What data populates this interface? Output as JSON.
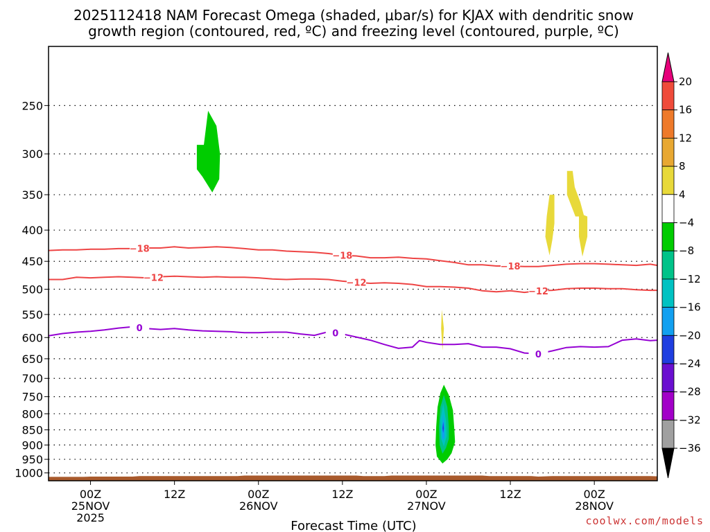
{
  "chart_data": {
    "type": "time-height contour",
    "title_line1": "2025112418 NAM Forecast Omega (shaded, μbar/s) for KJAX with dendritic snow",
    "title_line2": "growth region (contoured, red, ºC) and freezing level (contoured, purple, ºC)",
    "xlabel": "Forecast Time (UTC)",
    "credit": "coolwx.com/models",
    "x_range_hours": [
      -6,
      81
    ],
    "y_range_mb": [
      1030,
      200
    ],
    "y_ticks": [
      250,
      300,
      350,
      400,
      450,
      500,
      550,
      600,
      650,
      700,
      750,
      800,
      850,
      900,
      950,
      1000
    ],
    "x_ticks": [
      {
        "hour": 0,
        "lines": [
          "00Z",
          "25NOV",
          "2025"
        ]
      },
      {
        "hour": 12,
        "lines": [
          "12Z"
        ]
      },
      {
        "hour": 24,
        "lines": [
          "00Z",
          "26NOV"
        ]
      },
      {
        "hour": 36,
        "lines": [
          "12Z"
        ]
      },
      {
        "hour": 48,
        "lines": [
          "00Z",
          "27NOV"
        ]
      },
      {
        "hour": 60,
        "lines": [
          "12Z"
        ]
      },
      {
        "hour": 72,
        "lines": [
          "00Z",
          "28NOV"
        ]
      }
    ],
    "colorbar": {
      "levels": [
        "20",
        "16",
        "12",
        "8",
        "4",
        "−4",
        "−8",
        "−12",
        "−16",
        "−20",
        "−24",
        "−28",
        "−32",
        "−36"
      ],
      "colors": [
        "#e8397a",
        "#ef4b3a",
        "#ee7a2a",
        "#e8a832",
        "#e8d93a",
        "#ffffff",
        "#00cc00",
        "#00c389",
        "#00c2c2",
        "#12a0f0",
        "#1f3ee0",
        "#6a0fd0",
        "#a200c8",
        "#a0a0a0",
        "#000000"
      ],
      "top_arrow_color": "#e6007a",
      "bottom_arrow_color": "#000000"
    },
    "contours": [
      {
        "name": "dgz -18C",
        "color": "#ee4444",
        "label": "−18",
        "points": [
          [
            -6,
            432
          ],
          [
            -4,
            431
          ],
          [
            -2,
            431
          ],
          [
            0,
            430
          ],
          [
            2,
            430
          ],
          [
            4,
            429
          ],
          [
            6,
            429
          ],
          [
            8,
            428
          ],
          [
            10,
            428
          ],
          [
            12,
            426
          ],
          [
            14,
            428
          ],
          [
            16,
            427
          ],
          [
            18,
            426
          ],
          [
            20,
            427
          ],
          [
            22,
            429
          ],
          [
            24,
            431
          ],
          [
            26,
            431
          ],
          [
            28,
            433
          ],
          [
            30,
            434
          ],
          [
            32,
            435
          ],
          [
            34,
            437
          ],
          [
            36,
            440
          ],
          [
            38,
            441
          ],
          [
            40,
            444
          ],
          [
            42,
            444
          ],
          [
            44,
            443
          ],
          [
            46,
            445
          ],
          [
            48,
            446
          ],
          [
            50,
            449
          ],
          [
            52,
            452
          ],
          [
            54,
            456
          ],
          [
            56,
            456
          ],
          [
            58,
            458
          ],
          [
            60,
            458
          ],
          [
            62,
            459
          ],
          [
            64,
            459
          ],
          [
            66,
            457
          ],
          [
            68,
            455
          ],
          [
            70,
            454
          ],
          [
            72,
            454
          ],
          [
            74,
            455
          ],
          [
            76,
            456
          ],
          [
            78,
            457
          ],
          [
            80,
            455
          ],
          [
            81,
            457
          ]
        ],
        "label_hours": [
          7,
          36,
          60
        ]
      },
      {
        "name": "dgz -12C",
        "color": "#ee4444",
        "label": "−12",
        "points": [
          [
            -6,
            482
          ],
          [
            -4,
            482
          ],
          [
            -2,
            478
          ],
          [
            0,
            479
          ],
          [
            2,
            478
          ],
          [
            4,
            477
          ],
          [
            6,
            478
          ],
          [
            8,
            479
          ],
          [
            10,
            477
          ],
          [
            12,
            476
          ],
          [
            14,
            477
          ],
          [
            16,
            478
          ],
          [
            18,
            477
          ],
          [
            20,
            478
          ],
          [
            22,
            478
          ],
          [
            24,
            479
          ],
          [
            26,
            481
          ],
          [
            28,
            482
          ],
          [
            30,
            481
          ],
          [
            32,
            481
          ],
          [
            34,
            482
          ],
          [
            36,
            485
          ],
          [
            38,
            487
          ],
          [
            40,
            489
          ],
          [
            42,
            488
          ],
          [
            44,
            489
          ],
          [
            46,
            491
          ],
          [
            48,
            495
          ],
          [
            50,
            495
          ],
          [
            52,
            496
          ],
          [
            54,
            498
          ],
          [
            56,
            503
          ],
          [
            58,
            505
          ],
          [
            60,
            503
          ],
          [
            62,
            506
          ],
          [
            64,
            503
          ],
          [
            66,
            502
          ],
          [
            68,
            499
          ],
          [
            70,
            498
          ],
          [
            72,
            498
          ],
          [
            74,
            499
          ],
          [
            76,
            499
          ],
          [
            78,
            501
          ],
          [
            80,
            502
          ],
          [
            81,
            502
          ]
        ],
        "label_hours": [
          9,
          38,
          64
        ]
      },
      {
        "name": "freezing level 0C",
        "color": "#9400d3",
        "label": "0",
        "points": [
          [
            -6,
            596
          ],
          [
            -4,
            591
          ],
          [
            -2,
            588
          ],
          [
            0,
            586
          ],
          [
            2,
            583
          ],
          [
            4,
            579
          ],
          [
            6,
            576
          ],
          [
            8,
            580
          ],
          [
            10,
            582
          ],
          [
            12,
            580
          ],
          [
            14,
            583
          ],
          [
            16,
            585
          ],
          [
            18,
            586
          ],
          [
            20,
            587
          ],
          [
            22,
            589
          ],
          [
            24,
            589
          ],
          [
            26,
            588
          ],
          [
            28,
            588
          ],
          [
            30,
            592
          ],
          [
            32,
            595
          ],
          [
            34,
            587
          ],
          [
            36,
            592
          ],
          [
            38,
            599
          ],
          [
            40,
            606
          ],
          [
            42,
            616
          ],
          [
            44,
            625
          ],
          [
            46,
            622
          ],
          [
            47,
            607
          ],
          [
            48,
            611
          ],
          [
            50,
            616
          ],
          [
            52,
            616
          ],
          [
            54,
            614
          ],
          [
            56,
            622
          ],
          [
            58,
            622
          ],
          [
            60,
            626
          ],
          [
            62,
            636
          ],
          [
            64,
            638
          ],
          [
            66,
            631
          ],
          [
            68,
            623
          ],
          [
            70,
            621
          ],
          [
            72,
            622
          ],
          [
            74,
            621
          ],
          [
            76,
            606
          ],
          [
            78,
            603
          ],
          [
            80,
            607
          ],
          [
            81,
            606
          ]
        ],
        "label_hours": [
          7,
          35,
          64
        ]
      }
    ],
    "shaded_regions": [
      {
        "value_class": "−4 to −8",
        "color": "#00cc00",
        "points": [
          [
            16.8,
            255
          ],
          [
            18.0,
            270
          ],
          [
            18.5,
            300
          ],
          [
            18.4,
            330
          ],
          [
            17.4,
            347
          ],
          [
            16.0,
            327
          ],
          [
            15.2,
            318
          ],
          [
            15.2,
            290
          ],
          [
            16.2,
            290
          ]
        ]
      },
      {
        "value_class": "4 to 8",
        "color": "#e8d93a",
        "points": [
          [
            65.6,
            350
          ],
          [
            66.3,
            350
          ],
          [
            66.3,
            390
          ],
          [
            66.0,
            415
          ],
          [
            65.6,
            440
          ],
          [
            65.0,
            410
          ],
          [
            65.2,
            380
          ]
        ]
      },
      {
        "value_class": "4 to 8",
        "color": "#e8d93a",
        "points": [
          [
            68.1,
            320
          ],
          [
            68.9,
            320
          ],
          [
            69.2,
            340
          ],
          [
            70.0,
            360
          ],
          [
            70.5,
            378
          ],
          [
            71.0,
            380
          ],
          [
            71.0,
            410
          ],
          [
            70.3,
            442
          ],
          [
            69.8,
            410
          ],
          [
            69.8,
            380
          ],
          [
            69.3,
            380
          ],
          [
            68.1,
            350
          ]
        ]
      },
      {
        "value_class": "4 to 8",
        "color": "#e8d93a",
        "points": [
          [
            50.2,
            540
          ],
          [
            50.5,
            580
          ],
          [
            50.3,
            630
          ],
          [
            50.1,
            580
          ]
        ]
      },
      {
        "value_class": "−4 to −8",
        "color": "#00cc00",
        "points": [
          [
            50.5,
            717
          ],
          [
            51.2,
            745
          ],
          [
            51.8,
            790
          ],
          [
            52.0,
            850
          ],
          [
            52.1,
            890
          ],
          [
            51.6,
            928
          ],
          [
            51.0,
            950
          ],
          [
            50.3,
            965
          ],
          [
            49.5,
            940
          ],
          [
            49.3,
            900
          ],
          [
            49.4,
            840
          ],
          [
            49.6,
            780
          ],
          [
            50.0,
            740
          ]
        ]
      },
      {
        "value_class": "−8 to −12",
        "color": "#00c389",
        "points": [
          [
            50.5,
            745
          ],
          [
            51.0,
            780
          ],
          [
            51.2,
            840
          ],
          [
            51.2,
            880
          ],
          [
            50.8,
            910
          ],
          [
            50.3,
            930
          ],
          [
            49.9,
            900
          ],
          [
            49.8,
            840
          ],
          [
            50.0,
            780
          ]
        ]
      },
      {
        "value_class": "−12 to −16",
        "color": "#00c2c2",
        "points": [
          [
            50.4,
            770
          ],
          [
            50.8,
            820
          ],
          [
            50.9,
            870
          ],
          [
            50.5,
            905
          ],
          [
            50.1,
            880
          ],
          [
            50.0,
            820
          ]
        ]
      },
      {
        "value_class": "−16 to −20",
        "color": "#12a0f0",
        "points": [
          [
            50.4,
            800
          ],
          [
            50.6,
            840
          ],
          [
            50.6,
            875
          ],
          [
            50.3,
            885
          ],
          [
            50.2,
            850
          ]
        ]
      },
      {
        "value_class": "−20 to −24",
        "color": "#1f3ee0",
        "points": [
          [
            50.4,
            825
          ],
          [
            50.5,
            845
          ],
          [
            50.4,
            860
          ],
          [
            50.3,
            845
          ]
        ]
      }
    ],
    "surface_color": "#a95a2c",
    "surface_top_mb": [
      [
        -6,
        1015
      ],
      [
        -1,
        1015
      ],
      [
        0,
        1014
      ],
      [
        6,
        1014
      ],
      [
        7,
        1012
      ],
      [
        21,
        1012
      ],
      [
        22,
        1010
      ],
      [
        38,
        1010
      ],
      [
        39,
        1012
      ],
      [
        42,
        1012
      ],
      [
        43,
        1010
      ],
      [
        56,
        1010
      ],
      [
        57,
        1012
      ],
      [
        63,
        1012
      ],
      [
        64,
        1014
      ],
      [
        66,
        1012
      ],
      [
        80,
        1012
      ],
      [
        81,
        1013
      ]
    ]
  }
}
